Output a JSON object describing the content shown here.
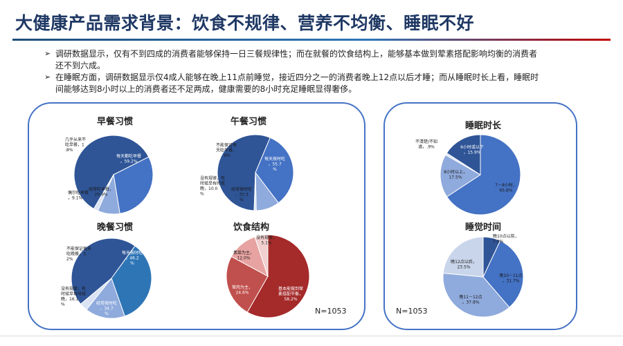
{
  "header": {
    "title": "大健康产品需求背景：饮食不规律、营养不均衡、睡眠不好"
  },
  "bullets": [
    "调研数据显示，仅有不到四成的消费者能够保持一日三餐规律性；而在就餐的饮食结构上，能够基本做到荤素搭配影响均衡的消费者还不到六成。",
    "在睡眠方面，调研数据显示仅4成人能够在晚上11点前睡觉，接近四分之一的消费者晚上12点以后才睡；而从睡眠时长上看，睡眠时间能够达到8小时以上的消费者还不足两成，健康需要的8小时充足睡眠显得奢侈。"
  ],
  "bullet_mark": "➢",
  "notes": {
    "left": "N=1053",
    "right": "N=1053"
  },
  "colors": {
    "accent": "#1f3864",
    "panel_border": "#4472c4"
  },
  "chart_data": [
    {
      "type": "pie",
      "title": "早餐习惯",
      "slices": [
        {
          "label": "每天都吃早餐",
          "value": 59.2,
          "color": "#2f5597"
        },
        {
          "label": "经常吃早餐",
          "value": 29.9,
          "color": "#4472c4"
        },
        {
          "label": "偶尔吃早餐",
          "value": 9.1,
          "color": "#8faadc"
        },
        {
          "label": "几乎从来不吃早餐",
          "value": 1.8,
          "color": "#dae3f3"
        }
      ],
      "labels": [
        {
          "text": "每天都吃早餐，59.2%"
        },
        {
          "text": "经常吃早餐，29.9%"
        },
        {
          "text": "偶尔吃早餐，9.1%"
        },
        {
          "text": "几乎从来不吃早餐，1.8%"
        }
      ]
    },
    {
      "type": "pie",
      "title": "午餐习惯",
      "slices": [
        {
          "label": "每天按时吃",
          "value": 55.7,
          "color": "#2f5597"
        },
        {
          "label": "经常按时吃",
          "value": 33.3,
          "color": "#4472c4"
        },
        {
          "label": "没有规律，有时候早有时候晚",
          "value": 10.0,
          "color": "#8faadc"
        },
        {
          "label": "不能保证每天吃午餐",
          "value": 0.9,
          "color": "#dae3f3"
        }
      ],
      "labels": [
        {
          "text": "每天按时吃，55.7%"
        },
        {
          "text": "经常按时吃，33.3%"
        },
        {
          "text": "没有规律，有时候早有时候晚，10.0%"
        },
        {
          "text": "不能保证每天吃午餐，.9%"
        }
      ]
    },
    {
      "type": "pie",
      "title": "晚餐习惯",
      "slices": [
        {
          "label": "每天按时吃",
          "value": 46.2,
          "color": "#2f5597"
        },
        {
          "label": "经常按时吃",
          "value": 34.7,
          "color": "#2e75b6"
        },
        {
          "label": "没有规律，有时候早有时候晚",
          "value": 16.1,
          "color": "#8faadc"
        },
        {
          "label": "不能保证每天吃晚餐",
          "value": 3.2,
          "color": "#dae3f3"
        }
      ],
      "labels": [
        {
          "text": "每天按时吃，46.2%"
        },
        {
          "text": "经常按时吃，34.7%"
        },
        {
          "text": "没有规律，有时候早有时候晚，16.1%"
        },
        {
          "text": "不能保证每天吃晚餐，3.2%"
        }
      ]
    },
    {
      "type": "pie",
      "title": "饮食结构",
      "slices": [
        {
          "label": "基本能做到荤素搭配平衡",
          "value": 58.2,
          "color": "#a52a2a"
        },
        {
          "label": "荤肉为主",
          "value": 24.6,
          "color": "#c0504d"
        },
        {
          "label": "素菜为主",
          "value": 12.0,
          "color": "#e6a3a1"
        },
        {
          "label": "没有规律",
          "value": 5.1,
          "color": "#f2d0cf"
        }
      ],
      "labels": [
        {
          "text": "基本能做到荤素搭配平衡，58.2%"
        },
        {
          "text": "荤肉为主，24.6%"
        },
        {
          "text": "素菜为主，12.0%"
        },
        {
          "text": "没有规律，5.1%"
        }
      ]
    },
    {
      "type": "pie",
      "title": "睡眠时长",
      "slices": [
        {
          "label": "7－8小时",
          "value": 65.8,
          "color": "#4472c4"
        },
        {
          "label": "8小时以上",
          "value": 17.5,
          "color": "#8faadc"
        },
        {
          "label": "不清楚/不知道",
          "value": 0.9,
          "color": "#dae3f3"
        },
        {
          "label": "6小时或以下",
          "value": 15.9,
          "color": "#2f5597"
        }
      ],
      "labels": [
        {
          "text": "7－8小时，65.8%"
        },
        {
          "text": "8小时以上，17.5%"
        },
        {
          "text": "不清楚/不知道，.9%"
        },
        {
          "text": "6小时或以下，15.9%"
        }
      ]
    },
    {
      "type": "pie",
      "title": "睡觉时间",
      "slices": [
        {
          "label": "晚10点以前",
          "value": 7.0,
          "color": "#2f5597"
        },
        {
          "label": "晚10－11点",
          "value": 31.7,
          "color": "#4472c4"
        },
        {
          "label": "晚11－12点",
          "value": 37.8,
          "color": "#8faadc"
        },
        {
          "label": "晚12点以后",
          "value": 23.5,
          "color": "#c9d5ea"
        }
      ],
      "labels": [
        {
          "text": "晚10点以前，7.0%"
        },
        {
          "text": "晚10－11点，31.7%"
        },
        {
          "text": "晚11－12点，37.8%"
        },
        {
          "text": "晚12点以后，23.5%"
        }
      ]
    }
  ]
}
